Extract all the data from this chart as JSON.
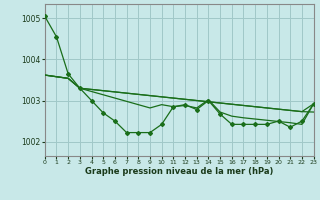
{
  "title": "Graphe pression niveau de la mer (hPa)",
  "bg_color": "#c8e8e8",
  "grid_color": "#a0c8c8",
  "line_color": "#1a6e1a",
  "xlim": [
    0,
    23
  ],
  "ylim": [
    1001.65,
    1005.35
  ],
  "yticks": [
    1002,
    1003,
    1004,
    1005
  ],
  "xticks": [
    0,
    1,
    2,
    3,
    4,
    5,
    6,
    7,
    8,
    9,
    10,
    11,
    12,
    13,
    14,
    15,
    16,
    17,
    18,
    19,
    20,
    21,
    22,
    23
  ],
  "series_jagged": [
    1005.05,
    1004.55,
    1003.65,
    1003.3,
    1003.0,
    1002.7,
    1002.5,
    1002.22,
    1002.22,
    1002.22,
    1002.42,
    1002.85,
    1002.9,
    1002.78,
    1003.0,
    1002.67,
    1002.42,
    1002.42,
    1002.42,
    1002.42,
    1002.5,
    1002.35,
    1002.5,
    1002.92
  ],
  "series_lin1": [
    1003.62,
    1003.58,
    1003.54,
    1003.3,
    1003.27,
    1003.24,
    1003.21,
    1003.18,
    1003.15,
    1003.12,
    1003.09,
    1003.06,
    1003.03,
    1003.0,
    1002.97,
    1002.94,
    1002.91,
    1002.88,
    1002.85,
    1002.82,
    1002.79,
    1002.76,
    1002.73,
    1002.72
  ],
  "series_lin2": [
    1003.62,
    1003.58,
    1003.54,
    1003.3,
    1003.27,
    1003.24,
    1003.21,
    1003.18,
    1003.15,
    1003.12,
    1003.09,
    1003.06,
    1003.03,
    1003.0,
    1002.97,
    1002.94,
    1002.91,
    1002.88,
    1002.85,
    1002.82,
    1002.79,
    1002.76,
    1002.73,
    1002.92
  ],
  "series_lin3": [
    1003.62,
    1003.58,
    1003.54,
    1003.3,
    1003.22,
    1003.14,
    1003.06,
    1002.98,
    1002.9,
    1002.82,
    1002.9,
    1002.85,
    1002.88,
    1002.82,
    1003.02,
    1002.72,
    1002.62,
    1002.58,
    1002.55,
    1002.52,
    1002.49,
    1002.46,
    1002.42,
    1002.92
  ]
}
